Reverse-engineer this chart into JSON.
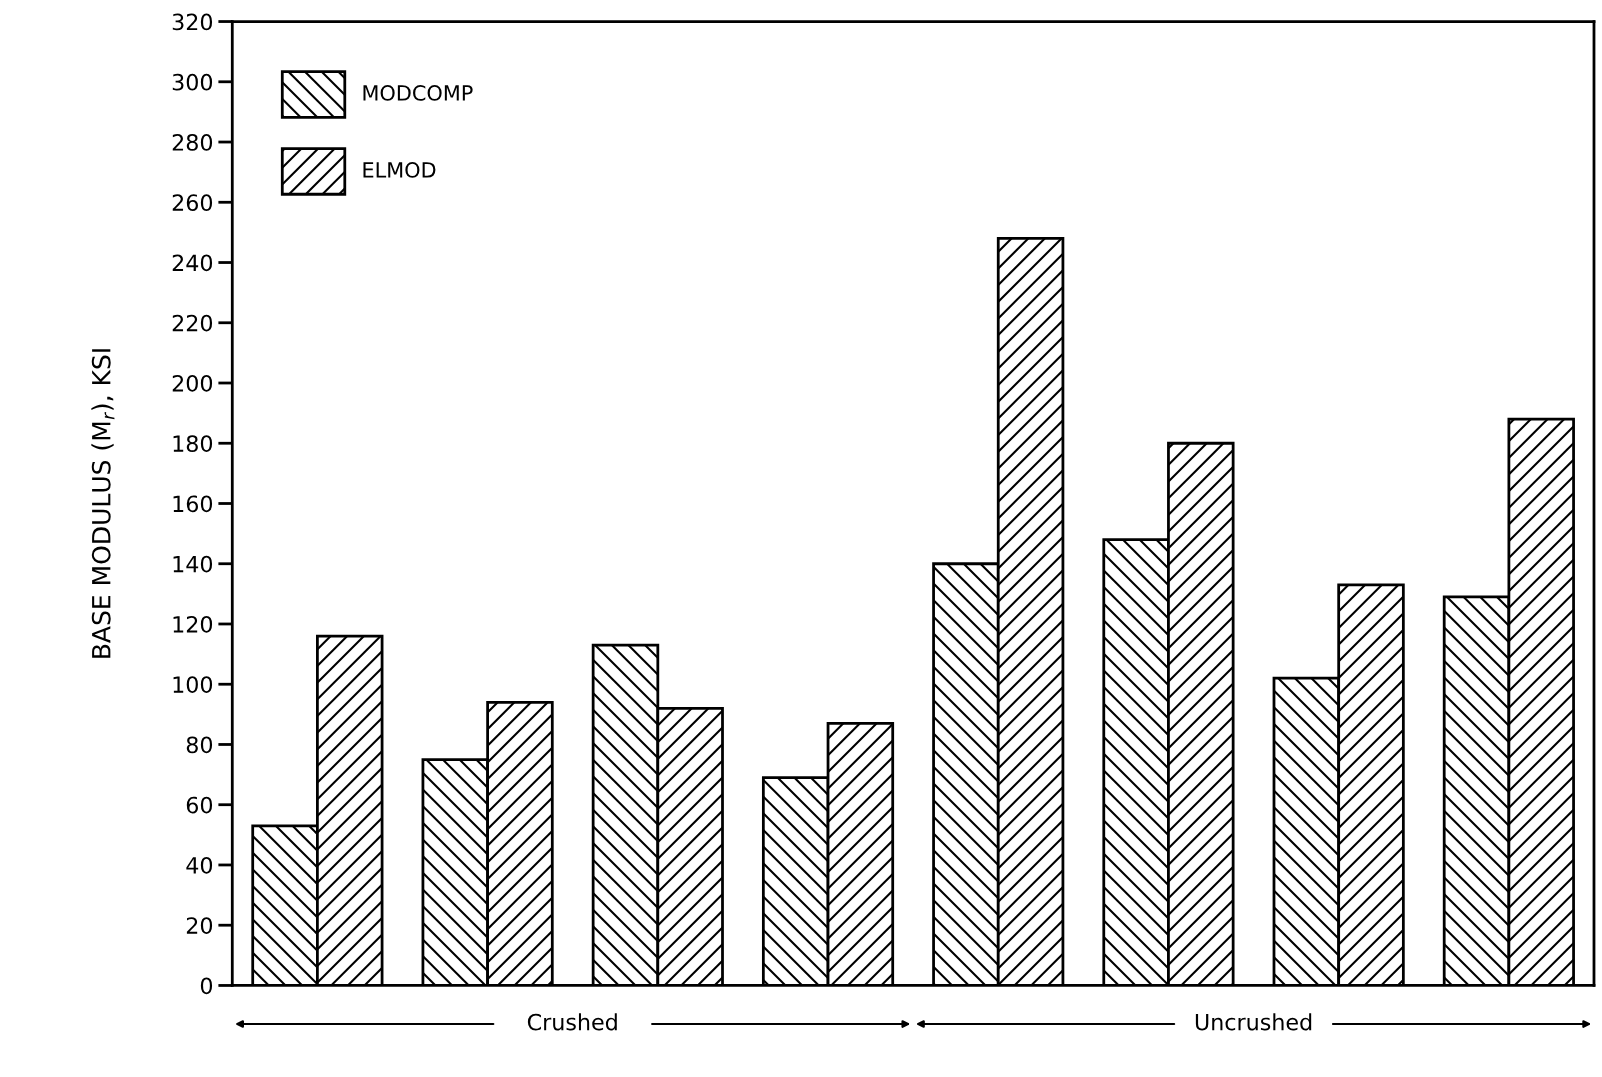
{
  "chart_data": {
    "type": "bar",
    "ylabel": "BASE MODULUS (M$_{r}$), KSI",
    "categories": [
      null,
      null,
      null,
      null,
      null,
      null,
      null,
      null
    ],
    "series": [
      {
        "name": "MODCOMP",
        "color": "#000000",
        "values": [
          53,
          75,
          113,
          69,
          140,
          148,
          102,
          129
        ]
      },
      {
        "name": "ELMOD",
        "color": "#000000",
        "values": [
          116,
          94,
          92,
          87,
          248,
          180,
          133,
          188
        ]
      }
    ],
    "ylim": [
      0,
      320
    ],
    "yticks": [
      0,
      20,
      40,
      60,
      80,
      100,
      120,
      140,
      160,
      180,
      200,
      220,
      240,
      260,
      280,
      300,
      320
    ],
    "annotations": [
      "Crushed",
      "Uncrushed"
    ],
    "grid": false,
    "legend": "top left"
  }
}
